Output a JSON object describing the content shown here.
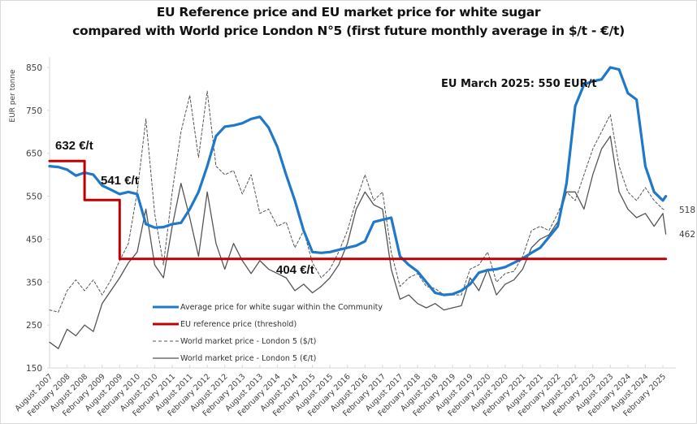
{
  "chart_data": {
    "type": "line",
    "title": "EU Reference price and EU market price for white sugar",
    "subtitle": "compared with World price London N°5 (first future monthly average in $/t - €/t)",
    "xlabel": "",
    "ylabel": "EUR per tonne",
    "ylim": [
      150,
      900
    ],
    "yticks": [
      150,
      250,
      350,
      450,
      550,
      650,
      750,
      850
    ],
    "grid": false,
    "legend_position": "bottom-left-inside",
    "x_start": "August 2007",
    "x_step_months": 3,
    "x_tick_labels": [
      "August 2007",
      "February 2008",
      "August 2008",
      "February 2009",
      "August 2009",
      "February 2010",
      "August 2010",
      "February 2011",
      "August 2011",
      "February 2012",
      "August 2012",
      "February 2013",
      "August 2013",
      "February 2014",
      "August 2014",
      "February 2015",
      "August 2015",
      "February 2016",
      "August 2016",
      "February 2017",
      "August 2017",
      "February 2018",
      "August 2018",
      "February 2019",
      "August 2019",
      "February 2020",
      "August 2020",
      "February 2021",
      "August 2021",
      "February 2022",
      "August 2022",
      "February 2023",
      "August 2023",
      "February 2024",
      "August 2024",
      "February 2025"
    ],
    "annotations": [
      {
        "text": "632 €/t",
        "series": "EU reference price (threshold)",
        "period": "2007-2008"
      },
      {
        "text": "541 €/t",
        "series": "EU reference price (threshold)",
        "period": "2008-2009"
      },
      {
        "text": "404 €/t",
        "series": "EU reference price (threshold)",
        "period": "2009-2025"
      },
      {
        "text": "EU March 2025:  550 EUR/t",
        "series": "Average price for white sugar within the Community"
      },
      {
        "text": "518",
        "series": "World market price - London 5 ($/t)",
        "period": "last"
      },
      {
        "text": "462",
        "series": "World market price - London 5 (€/t)",
        "period": "last"
      }
    ],
    "series": [
      {
        "name": "Average price for white sugar within the Community",
        "color": "#1f78c8",
        "style": "solid-thick",
        "months": [
          0,
          3,
          6,
          9,
          12,
          15,
          18,
          21,
          24,
          27,
          30,
          33,
          36,
          39,
          42,
          45,
          48,
          51,
          54,
          57,
          60,
          63,
          66,
          69,
          72,
          75,
          78,
          81,
          84,
          87,
          90,
          93,
          96,
          99,
          102,
          105,
          108,
          111,
          114,
          117,
          120,
          123,
          126,
          129,
          132,
          135,
          138,
          141,
          144,
          147,
          150,
          153,
          156,
          159,
          162,
          165,
          168,
          171,
          174,
          177,
          180,
          183,
          186,
          189,
          192,
          195,
          198,
          201,
          204,
          207,
          210,
          211
        ],
        "values": [
          620,
          618,
          612,
          598,
          605,
          600,
          575,
          565,
          555,
          560,
          555,
          485,
          477,
          478,
          485,
          488,
          520,
          560,
          620,
          690,
          712,
          715,
          720,
          730,
          735,
          710,
          665,
          600,
          540,
          470,
          420,
          418,
          420,
          425,
          430,
          435,
          445,
          490,
          495,
          500,
          410,
          390,
          375,
          350,
          325,
          320,
          322,
          330,
          345,
          372,
          378,
          380,
          385,
          395,
          405,
          418,
          430,
          455,
          480,
          580,
          760,
          810,
          818,
          822,
          850,
          845,
          790,
          775,
          620,
          560,
          540,
          550
        ]
      },
      {
        "name": "EU reference price (threshold)",
        "color": "#c00000",
        "style": "solid-step",
        "months": [
          0,
          12,
          12,
          24,
          24,
          211
        ],
        "values": [
          632,
          632,
          541,
          541,
          404,
          404
        ]
      },
      {
        "name": "World market price - London 5 ($/t)",
        "color": "#555555",
        "style": "dashed",
        "months": [
          0,
          3,
          6,
          9,
          12,
          15,
          18,
          21,
          24,
          27,
          30,
          33,
          36,
          39,
          42,
          45,
          48,
          51,
          54,
          57,
          60,
          63,
          66,
          69,
          72,
          75,
          78,
          81,
          84,
          87,
          90,
          93,
          96,
          99,
          102,
          105,
          108,
          111,
          114,
          117,
          120,
          123,
          126,
          129,
          132,
          135,
          138,
          141,
          144,
          147,
          150,
          153,
          156,
          159,
          162,
          165,
          168,
          171,
          174,
          177,
          180,
          183,
          186,
          189,
          192,
          195,
          198,
          201,
          204,
          207,
          210,
          211
        ],
        "values": [
          285,
          280,
          330,
          355,
          330,
          355,
          320,
          355,
          400,
          440,
          560,
          730,
          510,
          390,
          560,
          700,
          785,
          640,
          795,
          620,
          600,
          610,
          555,
          600,
          510,
          520,
          480,
          490,
          430,
          470,
          395,
          360,
          380,
          420,
          470,
          540,
          600,
          540,
          560,
          420,
          340,
          360,
          370,
          340,
          335,
          320,
          320,
          320,
          380,
          390,
          420,
          350,
          370,
          375,
          410,
          470,
          480,
          470,
          510,
          560,
          540,
          600,
          660,
          700,
          740,
          620,
          560,
          540,
          570,
          540,
          520,
          518
        ]
      },
      {
        "name": "World market price - London 5 (€/t)",
        "color": "#555555",
        "style": "solid-thin",
        "months": [
          0,
          3,
          6,
          9,
          12,
          15,
          18,
          21,
          24,
          27,
          30,
          33,
          36,
          39,
          42,
          45,
          48,
          51,
          54,
          57,
          60,
          63,
          66,
          69,
          72,
          75,
          78,
          81,
          84,
          87,
          90,
          93,
          96,
          99,
          102,
          105,
          108,
          111,
          114,
          117,
          120,
          123,
          126,
          129,
          132,
          135,
          138,
          141,
          144,
          147,
          150,
          153,
          156,
          159,
          162,
          165,
          168,
          171,
          174,
          177,
          180,
          183,
          186,
          189,
          192,
          195,
          198,
          201,
          204,
          207,
          210,
          211
        ],
        "values": [
          210,
          195,
          240,
          225,
          250,
          235,
          300,
          330,
          360,
          395,
          420,
          520,
          390,
          360,
          480,
          580,
          500,
          410,
          560,
          440,
          380,
          440,
          400,
          370,
          400,
          380,
          370,
          360,
          330,
          345,
          325,
          340,
          360,
          390,
          440,
          520,
          560,
          530,
          520,
          380,
          310,
          320,
          300,
          290,
          300,
          285,
          290,
          295,
          360,
          330,
          380,
          320,
          345,
          355,
          380,
          430,
          450,
          460,
          490,
          560,
          560,
          520,
          600,
          660,
          690,
          560,
          520,
          500,
          510,
          480,
          510,
          462
        ]
      }
    ]
  }
}
